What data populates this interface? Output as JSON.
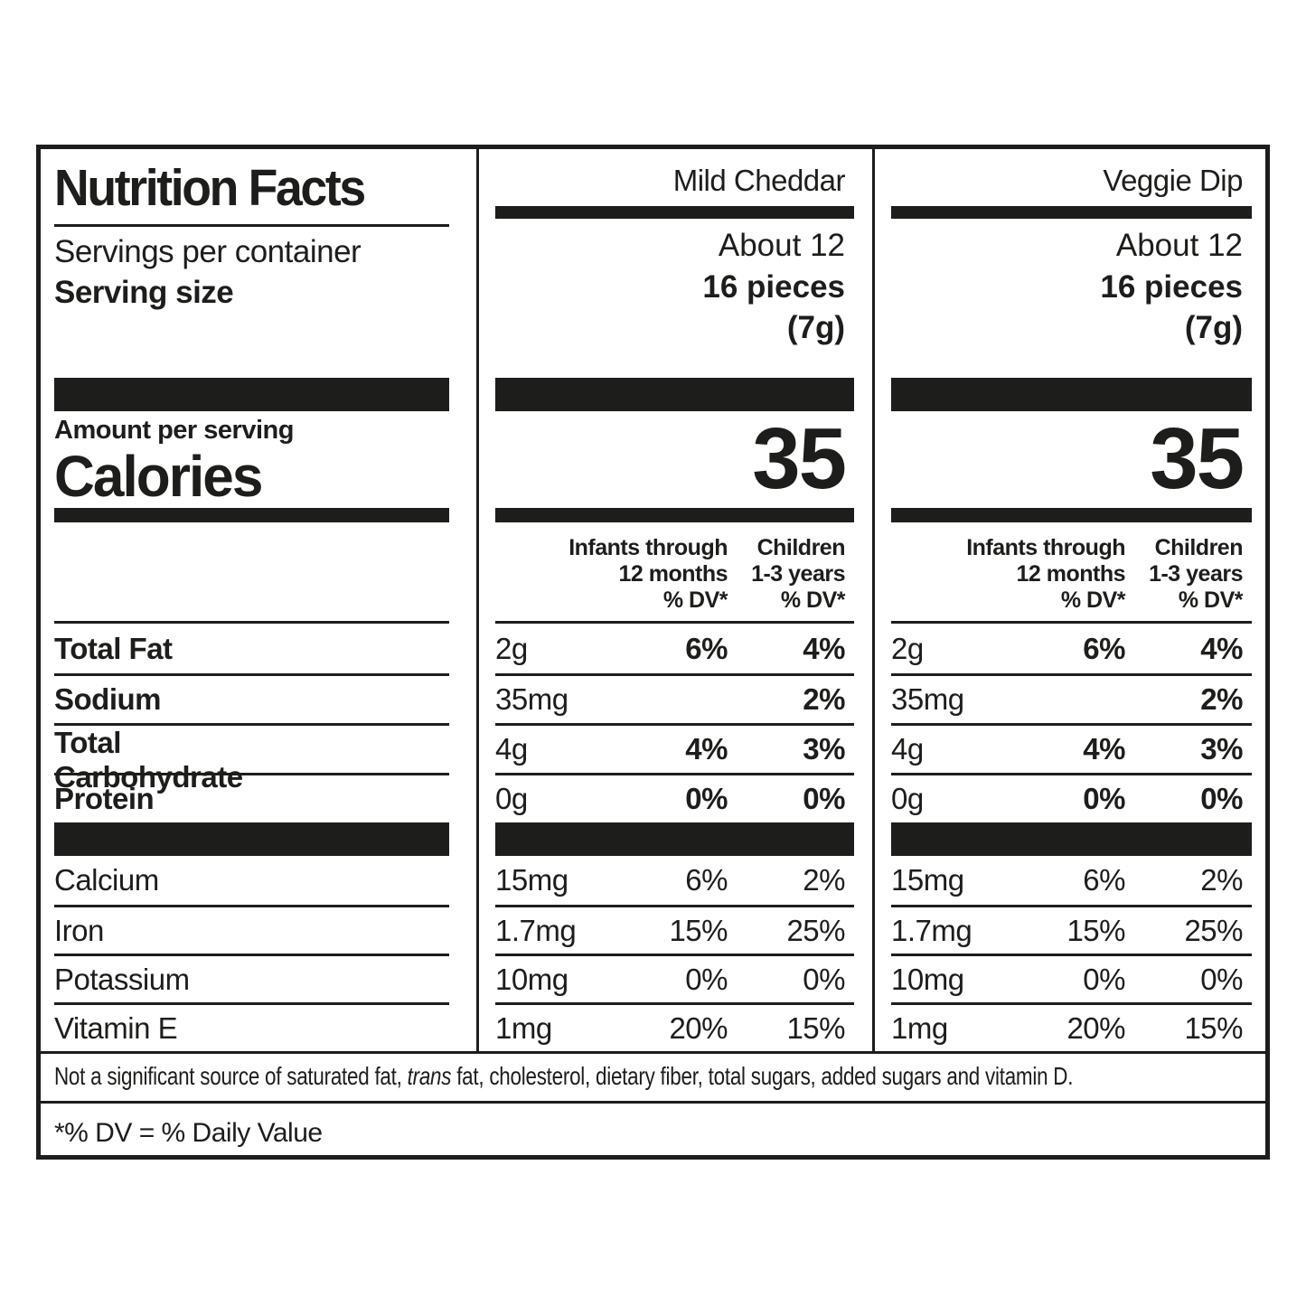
{
  "colors": {
    "ink": "#1d1d1b",
    "background": "#ffffff"
  },
  "label": {
    "title": "Nutrition Facts",
    "servings_per_container_label": "Servings per container",
    "serving_size_label": "Serving size",
    "amount_per_serving_label": "Amount per serving",
    "calories_label": "Calories",
    "col_headers": {
      "infants_line1": "Infants through",
      "infants_line2": "12 months",
      "children_line1": "Children",
      "children_line2": "1-3 years",
      "dv": "% DV*"
    },
    "nutrient_names": [
      "Total Fat",
      "Sodium",
      "Total Carbohydrate",
      "Protein"
    ],
    "mineral_names": [
      "Calcium",
      "Iron",
      "Potassium",
      "Vitamin E"
    ],
    "products": [
      {
        "name": "Mild Cheddar",
        "servings": "About 12",
        "serving_size": "16 pieces",
        "serving_weight": "(7g)",
        "calories": "35",
        "rows": [
          {
            "amount": "2g",
            "infants_dv": "6%",
            "children_dv": "4%"
          },
          {
            "amount": "35mg",
            "infants_dv": "",
            "children_dv": "2%"
          },
          {
            "amount": "4g",
            "infants_dv": "4%",
            "children_dv": "3%"
          },
          {
            "amount": "0g",
            "infants_dv": "0%",
            "children_dv": "0%"
          }
        ],
        "minerals": [
          {
            "amount": "15mg",
            "infants_dv": "6%",
            "children_dv": "2%"
          },
          {
            "amount": "1.7mg",
            "infants_dv": "15%",
            "children_dv": "25%"
          },
          {
            "amount": "10mg",
            "infants_dv": "0%",
            "children_dv": "0%"
          },
          {
            "amount": "1mg",
            "infants_dv": "20%",
            "children_dv": "15%"
          }
        ]
      },
      {
        "name": "Veggie Dip",
        "servings": "About 12",
        "serving_size": "16 pieces",
        "serving_weight": "(7g)",
        "calories": "35",
        "rows": [
          {
            "amount": "2g",
            "infants_dv": "6%",
            "children_dv": "4%"
          },
          {
            "amount": "35mg",
            "infants_dv": "",
            "children_dv": "2%"
          },
          {
            "amount": "4g",
            "infants_dv": "4%",
            "children_dv": "3%"
          },
          {
            "amount": "0g",
            "infants_dv": "0%",
            "children_dv": "0%"
          }
        ],
        "minerals": [
          {
            "amount": "15mg",
            "infants_dv": "6%",
            "children_dv": "2%"
          },
          {
            "amount": "1.7mg",
            "infants_dv": "15%",
            "children_dv": "25%"
          },
          {
            "amount": "10mg",
            "infants_dv": "0%",
            "children_dv": "0%"
          },
          {
            "amount": "1mg",
            "infants_dv": "20%",
            "children_dv": "15%"
          }
        ]
      }
    ],
    "footnote": {
      "part1": "Not a significant source of saturated fat, ",
      "italic": "trans",
      "part2": " fat, cholesterol, dietary fiber, total sugars, added sugars and vitamin D."
    },
    "dv_note": "*% DV = % Daily Value"
  }
}
